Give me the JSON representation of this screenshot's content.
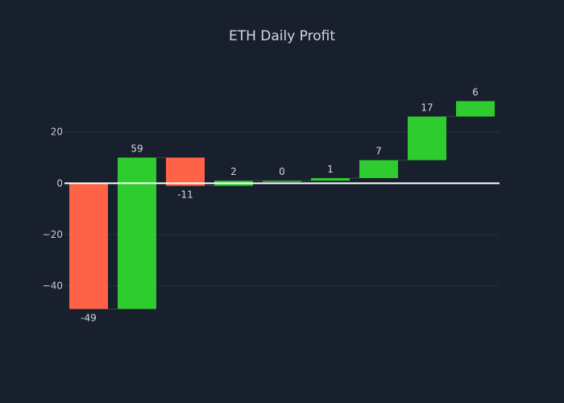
{
  "chart_data": {
    "type": "waterfall",
    "title": "ETH Daily Profit",
    "xlabel": "",
    "ylabel": "",
    "steps": [
      -49,
      59,
      -11,
      2,
      0,
      1,
      7,
      17,
      6
    ],
    "labels": [
      "-49",
      "59",
      "-11",
      "2",
      "0",
      "1",
      "7",
      "17",
      "6"
    ],
    "y_ticks": [
      20,
      0,
      -20,
      -40
    ],
    "y_tick_labels": [
      "20",
      "0",
      "−20",
      "−40"
    ],
    "ylim": [
      -60.5,
      40
    ],
    "grid": true,
    "legend": false,
    "colors": {
      "increase": "#2ecc2e",
      "decrease": "#ff6347",
      "background": "#17202c",
      "grid": "#273241",
      "zero_line": "#ffffff",
      "connector": "#3b4453"
    }
  }
}
